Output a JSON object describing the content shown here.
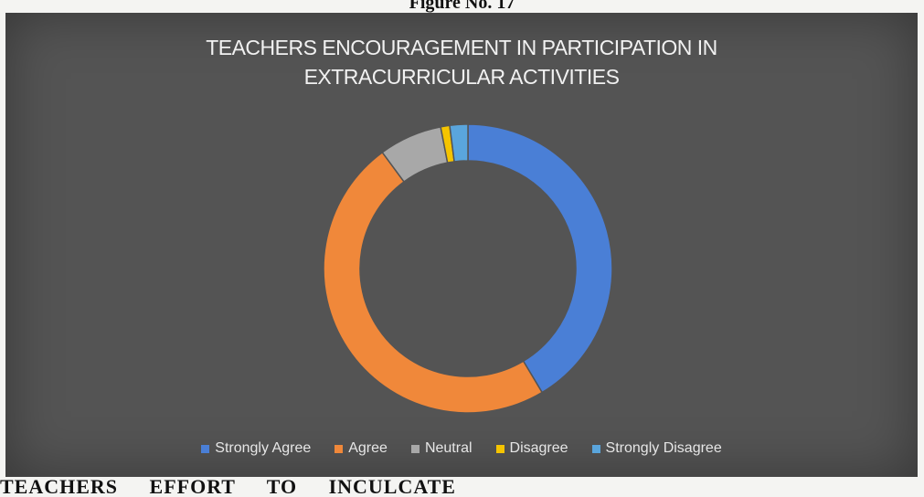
{
  "figure_label": "Figure No. 17",
  "bottom_text": "TEACHERS EFFORT TO INCULCATE",
  "chart_data": {
    "type": "pie",
    "variant": "donut",
    "title_lines": [
      "TEACHERS ENCOURAGEMENT IN PARTICIPATION IN",
      "EXTRACURRICULAR ACTIVITIES"
    ],
    "categories": [
      "Strongly Agree",
      "Agree",
      "Neutral",
      "Disagree",
      "Strongly Disagree"
    ],
    "values": [
      41,
      48,
      7,
      1,
      2
    ],
    "colors": [
      "#4a7fd6",
      "#f0883a",
      "#a8a8a8",
      "#f5c400",
      "#5aa5dc"
    ],
    "legend_position": "bottom",
    "grid": false
  }
}
